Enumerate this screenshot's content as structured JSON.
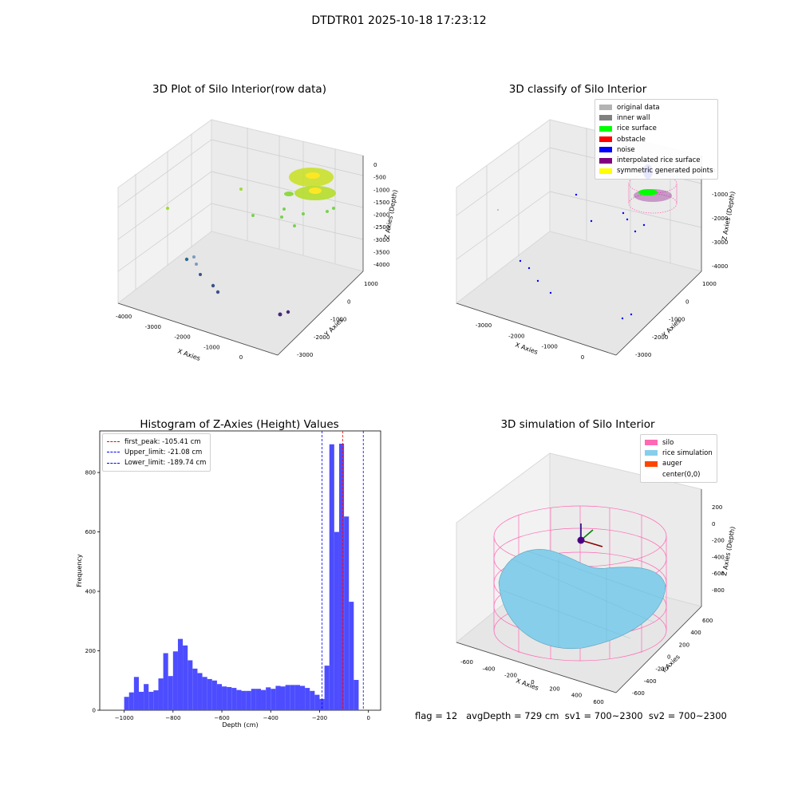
{
  "suptitle": "DTDTR01 2025-10-18 17:23:12",
  "footer": "flag = 12   avgDepth = 729 cm  sv1 = 700~2300  sv2 = 700~2300",
  "chart_data": [
    {
      "type": "scatter",
      "title": "3D Plot of Silo Interior(row data)",
      "xlabel": "X Axies",
      "ylabel": "Y Axies",
      "zlabel": "Z Axies (Depth)",
      "x_ticks": [
        "-4000",
        "-3000",
        "-2000",
        "-1000",
        "0"
      ],
      "y_ticks": [
        "-3000",
        "-2000",
        "-1000",
        "0",
        "1000"
      ],
      "z_ticks": [
        "0",
        "-500",
        "-1000",
        "-1500",
        "-2000",
        "-2500",
        "-3000",
        "-3500",
        "-4000"
      ],
      "colormap": "viridis"
    },
    {
      "type": "scatter",
      "title": "3D classify of Silo Interior",
      "xlabel": "X Axies",
      "ylabel": "Y Axies",
      "zlabel": "Z Axies (Depth)",
      "x_ticks": [
        "-3000",
        "-2000",
        "-1000",
        "0"
      ],
      "y_ticks": [
        "-3000",
        "-2000",
        "-1000",
        "0",
        "1000"
      ],
      "z_ticks": [
        "0",
        "-1000",
        "-2000",
        "-3000",
        "-4000"
      ],
      "legend": [
        {
          "label": "original data",
          "color": "#b3b3b3"
        },
        {
          "label": "inner wall",
          "color": "#808080"
        },
        {
          "label": "rice surface",
          "color": "#00ff00"
        },
        {
          "label": "obstacle",
          "color": "#ff0000"
        },
        {
          "label": "noise",
          "color": "#0000ff"
        },
        {
          "label": "interpolated rice surface",
          "color": "#800080"
        },
        {
          "label": "symmetric generated points",
          "color": "#ffff00"
        }
      ]
    },
    {
      "type": "bar",
      "title": "Histogram of Z-Axies (Height) Values",
      "xlabel": "Depth (cm)",
      "ylabel": "Frequency",
      "xlim": [
        -1100,
        50
      ],
      "ylim": [
        0,
        940
      ],
      "x_ticks": [
        -1000,
        -800,
        -600,
        -400,
        -200,
        0
      ],
      "y_ticks": [
        0,
        200,
        400,
        600,
        800
      ],
      "bar_color": "#4d4dff",
      "bin_start": -1000,
      "bin_width": 20,
      "values": [
        45,
        60,
        112,
        62,
        88,
        62,
        67,
        107,
        192,
        115,
        198,
        240,
        218,
        168,
        140,
        125,
        112,
        105,
        100,
        88,
        80,
        78,
        75,
        68,
        65,
        65,
        72,
        72,
        68,
        77,
        72,
        82,
        80,
        85,
        85,
        85,
        82,
        75,
        65,
        52,
        38,
        150,
        895,
        600,
        897,
        652,
        365,
        102
      ],
      "lines": [
        {
          "label": "first_peak: -105.41 cm",
          "value": -105.41,
          "color": "#ff0000"
        },
        {
          "label": "Upper_limit: -21.08 cm",
          "value": -21.08,
          "color": "#0000ff"
        },
        {
          "label": "Lower_limit: -189.74 cm",
          "value": -189.74,
          "color": "#0000ff"
        }
      ]
    },
    {
      "type": "surface",
      "title": "3D simulation of Silo Interior",
      "xlabel": "X Axies",
      "ylabel": "Y Axies",
      "zlabel": "Z Axies (Depth)",
      "x_ticks": [
        "-600",
        "-400",
        "-200",
        "0",
        "200",
        "400",
        "600"
      ],
      "y_ticks": [
        "-600",
        "-400",
        "-200",
        "0",
        "200",
        "400",
        "600"
      ],
      "z_ticks": [
        "200",
        "0",
        "-200",
        "-400",
        "-600",
        "-800"
      ],
      "legend": [
        {
          "label": "silo",
          "color": "#ff69b4"
        },
        {
          "label": "rice simulation",
          "color": "#87ceeb"
        },
        {
          "label": "auger",
          "color": "#ff4500"
        },
        {
          "label": "center(0,0)",
          "color": ""
        }
      ]
    }
  ]
}
